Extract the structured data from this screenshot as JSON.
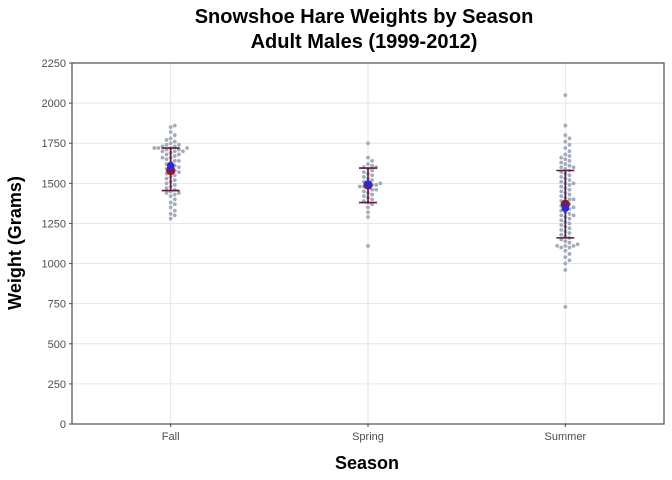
{
  "chart_data": {
    "type": "scatter",
    "title": [
      "Snowshoe Hare Weights by Season",
      "Adult Males (1999-2012)"
    ],
    "xlabel": "Season",
    "ylabel": "Weight (Grams)",
    "categories": [
      "Fall",
      "Spring",
      "Summer"
    ],
    "ylim": [
      0,
      2250
    ],
    "yticks": [
      "0",
      "250",
      "500",
      "750",
      "1000",
      "1250",
      "1500",
      "1750",
      "2000",
      "2250"
    ],
    "grid": true,
    "colors": {
      "points": "#9aa3b5",
      "mean": "#2b2bd6",
      "median": "#8b1a3a",
      "error_bar": "#5a1a3a"
    },
    "summary": [
      {
        "category": "Fall",
        "mean": 1610,
        "median": 1580,
        "sd_lower": 1455,
        "sd_upper": 1720
      },
      {
        "category": "Spring",
        "mean": 1495,
        "median": 1490,
        "sd_lower": 1380,
        "sd_upper": 1595
      },
      {
        "category": "Summer",
        "mean": 1345,
        "median": 1370,
        "sd_lower": 1160,
        "sd_upper": 1580
      }
    ],
    "series": [
      {
        "category": "Fall",
        "values": [
          1280,
          1300,
          1310,
          1330,
          1350,
          1370,
          1380,
          1400,
          1420,
          1430,
          1440,
          1440,
          1450,
          1460,
          1470,
          1480,
          1490,
          1500,
          1510,
          1520,
          1530,
          1540,
          1550,
          1560,
          1570,
          1570,
          1580,
          1590,
          1600,
          1600,
          1610,
          1620,
          1630,
          1640,
          1640,
          1650,
          1660,
          1660,
          1670,
          1680,
          1680,
          1690,
          1700,
          1700,
          1700,
          1710,
          1710,
          1720,
          1720,
          1720,
          1720,
          1730,
          1730,
          1740,
          1740,
          1750,
          1760,
          1770,
          1780,
          1800,
          1820,
          1850,
          1860
        ]
      },
      {
        "category": "Spring",
        "values": [
          1110,
          1290,
          1320,
          1350,
          1370,
          1380,
          1390,
          1400,
          1410,
          1420,
          1430,
          1440,
          1450,
          1460,
          1460,
          1470,
          1480,
          1480,
          1490,
          1490,
          1500,
          1500,
          1510,
          1520,
          1530,
          1540,
          1550,
          1560,
          1570,
          1580,
          1590,
          1600,
          1600,
          1610,
          1620,
          1640,
          1660,
          1750
        ]
      },
      {
        "category": "Summer",
        "values": [
          730,
          960,
          1000,
          1020,
          1040,
          1060,
          1080,
          1100,
          1100,
          1110,
          1110,
          1110,
          1120,
          1130,
          1140,
          1150,
          1160,
          1170,
          1180,
          1190,
          1200,
          1210,
          1220,
          1230,
          1240,
          1250,
          1260,
          1270,
          1280,
          1290,
          1300,
          1300,
          1310,
          1320,
          1330,
          1340,
          1350,
          1350,
          1360,
          1370,
          1380,
          1390,
          1400,
          1400,
          1410,
          1420,
          1430,
          1440,
          1450,
          1460,
          1470,
          1480,
          1490,
          1500,
          1500,
          1510,
          1520,
          1530,
          1540,
          1550,
          1560,
          1570,
          1580,
          1590,
          1600,
          1600,
          1610,
          1620,
          1630,
          1640,
          1650,
          1660,
          1670,
          1680,
          1700,
          1720,
          1740,
          1760,
          1780,
          1800,
          1860,
          2050
        ]
      }
    ]
  }
}
